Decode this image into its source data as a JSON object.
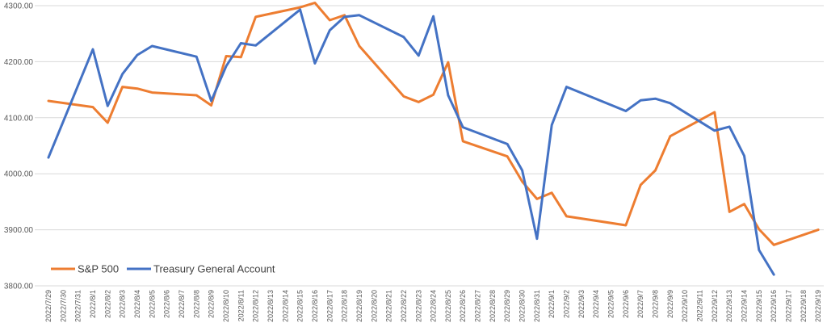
{
  "chart_data": {
    "type": "line",
    "title": "",
    "xlabel": "",
    "ylabel": "",
    "ylim": [
      3800,
      4300
    ],
    "yticks": [
      "3800.00",
      "3900.00",
      "4000.00",
      "4100.00",
      "4200.00",
      "4300.00"
    ],
    "grid": true,
    "legend_position": "bottom-left",
    "categories": [
      "2022/7/29",
      "2022/7/30",
      "2022/7/31",
      "2022/8/1",
      "2022/8/2",
      "2022/8/3",
      "2022/8/4",
      "2022/8/5",
      "2022/8/6",
      "2022/8/7",
      "2022/8/8",
      "2022/8/9",
      "2022/8/10",
      "2022/8/11",
      "2022/8/12",
      "2022/8/13",
      "2022/8/14",
      "2022/8/15",
      "2022/8/16",
      "2022/8/17",
      "2022/8/18",
      "2022/8/19",
      "2022/8/20",
      "2022/8/21",
      "2022/8/22",
      "2022/8/23",
      "2022/8/24",
      "2022/8/25",
      "2022/8/26",
      "2022/8/27",
      "2022/8/28",
      "2022/8/29",
      "2022/8/30",
      "2022/8/31",
      "2022/9/1",
      "2022/9/2",
      "2022/9/3",
      "2022/9/4",
      "2022/9/5",
      "2022/9/6",
      "2022/9/7",
      "2022/9/8",
      "2022/9/9",
      "2022/9/10",
      "2022/9/11",
      "2022/9/12",
      "2022/9/13",
      "2022/9/14",
      "2022/9/15",
      "2022/9/16",
      "2022/9/17",
      "2022/9/18",
      "2022/9/19"
    ],
    "series": [
      {
        "name": "S&P 500",
        "color": "#ED7D31",
        "points": [
          [
            "2022/7/29",
            4130
          ],
          [
            "2022/8/1",
            4119
          ],
          [
            "2022/8/2",
            4091
          ],
          [
            "2022/8/3",
            4155
          ],
          [
            "2022/8/4",
            4152
          ],
          [
            "2022/8/5",
            4145
          ],
          [
            "2022/8/8",
            4140
          ],
          [
            "2022/8/9",
            4122
          ],
          [
            "2022/8/10",
            4210
          ],
          [
            "2022/8/11",
            4208
          ],
          [
            "2022/8/12",
            4280
          ],
          [
            "2022/8/15",
            4297
          ],
          [
            "2022/8/16",
            4305
          ],
          [
            "2022/8/17",
            4274
          ],
          [
            "2022/8/18",
            4283
          ],
          [
            "2022/8/19",
            4228
          ],
          [
            "2022/8/22",
            4138
          ],
          [
            "2022/8/23",
            4128
          ],
          [
            "2022/8/24",
            4141
          ],
          [
            "2022/8/25",
            4199
          ],
          [
            "2022/8/26",
            4058
          ],
          [
            "2022/8/29",
            4031
          ],
          [
            "2022/8/30",
            3986
          ],
          [
            "2022/8/31",
            3955
          ],
          [
            "2022/9/1",
            3966
          ],
          [
            "2022/9/2",
            3924
          ],
          [
            "2022/9/6",
            3908
          ],
          [
            "2022/9/7",
            3980
          ],
          [
            "2022/9/8",
            4006
          ],
          [
            "2022/9/9",
            4067
          ],
          [
            "2022/9/12",
            4110
          ],
          [
            "2022/9/13",
            3932
          ],
          [
            "2022/9/14",
            3946
          ],
          [
            "2022/9/15",
            3901
          ],
          [
            "2022/9/16",
            3873
          ],
          [
            "2022/9/19",
            3900
          ]
        ]
      },
      {
        "name": "Treasury General Account",
        "color": "#4472C4",
        "points": [
          [
            "2022/7/29",
            4029
          ],
          [
            "2022/8/1",
            4222
          ],
          [
            "2022/8/2",
            4121
          ],
          [
            "2022/8/3",
            4178
          ],
          [
            "2022/8/4",
            4212
          ],
          [
            "2022/8/5",
            4228
          ],
          [
            "2022/8/8",
            4209
          ],
          [
            "2022/8/9",
            4130
          ],
          [
            "2022/8/10",
            4192
          ],
          [
            "2022/8/11",
            4233
          ],
          [
            "2022/8/12",
            4229
          ],
          [
            "2022/8/15",
            4293
          ],
          [
            "2022/8/16",
            4197
          ],
          [
            "2022/8/17",
            4256
          ],
          [
            "2022/8/18",
            4280
          ],
          [
            "2022/8/19",
            4283
          ],
          [
            "2022/8/22",
            4244
          ],
          [
            "2022/8/23",
            4211
          ],
          [
            "2022/8/24",
            4281
          ],
          [
            "2022/8/25",
            4140
          ],
          [
            "2022/8/26",
            4083
          ],
          [
            "2022/8/29",
            4053
          ],
          [
            "2022/8/30",
            4006
          ],
          [
            "2022/8/31",
            3884
          ],
          [
            "2022/9/1",
            4087
          ],
          [
            "2022/9/2",
            4155
          ],
          [
            "2022/9/6",
            4112
          ],
          [
            "2022/9/7",
            4131
          ],
          [
            "2022/9/8",
            4134
          ],
          [
            "2022/9/9",
            4126
          ],
          [
            "2022/9/12",
            4077
          ],
          [
            "2022/9/13",
            4084
          ],
          [
            "2022/9/14",
            4032
          ],
          [
            "2022/9/15",
            3864
          ],
          [
            "2022/9/16",
            3820
          ]
        ]
      }
    ]
  }
}
